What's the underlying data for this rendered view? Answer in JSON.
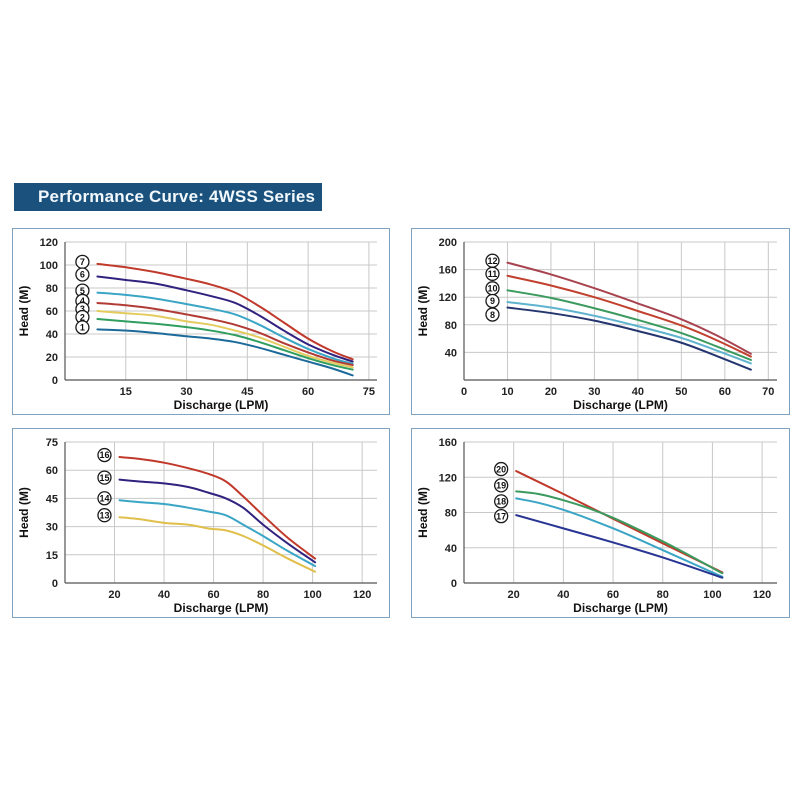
{
  "header": {
    "title": "Performance Curve: 4WSS Series"
  },
  "colors": {
    "banner_bg": "#1a527d",
    "banner_text": "#f2f8fc",
    "panel_border": "#7ea2bf",
    "grid": "#c8c8c8",
    "axis": "#555555",
    "tick_text": "#222222",
    "label_circle_stroke": "#1a1a1a"
  },
  "chart_data": [
    {
      "id": "top-left",
      "type": "line",
      "title": "",
      "xlabel": "Discharge (LPM)",
      "ylabel": "Head (M)",
      "xlim": [
        0,
        77
      ],
      "ylim": [
        0,
        120
      ],
      "xticks": [
        15,
        30,
        45,
        60,
        75
      ],
      "yticks": [
        0,
        20,
        40,
        60,
        80,
        100,
        120
      ],
      "grid": true,
      "legend": "circled numbers at curve start",
      "series": [
        {
          "name": "7",
          "color": "#c0392b",
          "x": [
            8,
            15,
            22,
            30,
            36,
            42,
            48,
            54,
            60,
            66,
            71
          ],
          "y": [
            101,
            98,
            94,
            88,
            83,
            76,
            64,
            50,
            36,
            25,
            18
          ]
        },
        {
          "name": "6",
          "color": "#31227f",
          "x": [
            8,
            15,
            22,
            30,
            36,
            42,
            48,
            54,
            60,
            66,
            71
          ],
          "y": [
            90,
            87,
            84,
            78,
            73,
            67,
            56,
            43,
            31,
            22,
            16
          ]
        },
        {
          "name": "5",
          "color": "#3aa5c5",
          "x": [
            8,
            15,
            22,
            30,
            36,
            42,
            48,
            54,
            60,
            66,
            71
          ],
          "y": [
            76,
            74,
            71,
            66,
            62,
            57,
            48,
            37,
            27,
            19,
            14
          ]
        },
        {
          "name": "4",
          "color": "#b23a34",
          "x": [
            8,
            15,
            22,
            30,
            36,
            42,
            48,
            54,
            60,
            66,
            71
          ],
          "y": [
            67,
            65,
            62,
            57,
            53,
            48,
            41,
            32,
            24,
            17,
            13
          ]
        },
        {
          "name": "3",
          "color": "#e4cb5e",
          "x": [
            8,
            15,
            22,
            30,
            36,
            42,
            48,
            54,
            60,
            66,
            71
          ],
          "y": [
            60,
            58,
            56,
            51,
            48,
            43,
            37,
            29,
            21,
            15,
            11
          ]
        },
        {
          "name": "2",
          "color": "#2f9e5e",
          "x": [
            8,
            15,
            22,
            30,
            36,
            42,
            48,
            54,
            60,
            66,
            71
          ],
          "y": [
            53,
            51,
            49,
            46,
            43,
            39,
            33,
            26,
            19,
            13,
            9
          ]
        },
        {
          "name": "1",
          "color": "#1c6a99",
          "x": [
            8,
            15,
            22,
            30,
            36,
            42,
            48,
            54,
            60,
            66,
            71
          ],
          "y": [
            44,
            43,
            41,
            38,
            36,
            33,
            28,
            22,
            16,
            10,
            4
          ]
        }
      ]
    },
    {
      "id": "top-right",
      "type": "line",
      "title": "",
      "xlabel": "Discharge (LPM)",
      "ylabel": "Head (M)",
      "xlim": [
        0,
        72
      ],
      "ylim": [
        0,
        200
      ],
      "xticks": [
        0,
        10,
        20,
        30,
        40,
        50,
        60,
        70
      ],
      "yticks": [
        40,
        80,
        120,
        160,
        200
      ],
      "grid": true,
      "legend": "circled numbers at curve start",
      "series": [
        {
          "name": "12",
          "color": "#a84350",
          "x": [
            10,
            20,
            30,
            40,
            50,
            58,
            66
          ],
          "y": [
            170,
            153,
            133,
            111,
            88,
            65,
            38
          ]
        },
        {
          "name": "11",
          "color": "#c2402e",
          "x": [
            10,
            20,
            30,
            40,
            50,
            58,
            66
          ],
          "y": [
            151,
            137,
            120,
            100,
            79,
            58,
            34
          ]
        },
        {
          "name": "10",
          "color": "#3b9a5e",
          "x": [
            10,
            20,
            30,
            40,
            50,
            58,
            66
          ],
          "y": [
            130,
            119,
            104,
            87,
            68,
            49,
            29
          ]
        },
        {
          "name": "9",
          "color": "#5fb3cf",
          "x": [
            10,
            20,
            30,
            40,
            50,
            58,
            66
          ],
          "y": [
            113,
            105,
            93,
            78,
            61,
            43,
            24
          ],
          "label_dy": 1
        },
        {
          "name": "8",
          "color": "#24356f",
          "x": [
            10,
            20,
            30,
            40,
            50,
            58,
            66
          ],
          "y": [
            105,
            97,
            86,
            71,
            54,
            35,
            15
          ],
          "label_dy": 9
        }
      ]
    },
    {
      "id": "bottom-left",
      "type": "line",
      "title": "",
      "xlabel": "Discharge (LPM)",
      "ylabel": "Head (M)",
      "xlim": [
        0,
        126
      ],
      "ylim": [
        0,
        75
      ],
      "xticks": [
        20,
        40,
        60,
        80,
        100,
        120
      ],
      "yticks": [
        0,
        15,
        30,
        45,
        60,
        75
      ],
      "grid": true,
      "legend": "circled numbers at curve start",
      "series": [
        {
          "name": "16",
          "color": "#c0392b",
          "x": [
            22,
            30,
            40,
            50,
            58,
            65,
            72,
            80,
            90,
            101
          ],
          "y": [
            67,
            66,
            64,
            61,
            58,
            54,
            46,
            36,
            24,
            13
          ]
        },
        {
          "name": "15",
          "color": "#31227f",
          "x": [
            22,
            30,
            40,
            50,
            58,
            65,
            72,
            80,
            90,
            101
          ],
          "y": [
            55,
            54,
            53,
            51,
            48,
            45,
            40,
            31,
            21,
            11
          ]
        },
        {
          "name": "14",
          "color": "#3aa5c5",
          "x": [
            22,
            30,
            40,
            50,
            58,
            65,
            72,
            80,
            90,
            101
          ],
          "y": [
            44,
            43,
            42,
            40,
            38,
            36,
            31,
            25,
            17,
            9
          ]
        },
        {
          "name": "13",
          "color": "#e0bf4a",
          "x": [
            22,
            30,
            40,
            50,
            58,
            65,
            72,
            80,
            90,
            101
          ],
          "y": [
            35,
            34,
            32,
            31,
            29,
            28,
            25,
            20,
            13,
            6
          ]
        }
      ]
    },
    {
      "id": "bottom-right",
      "type": "line",
      "title": "",
      "xlabel": "Discharge (LPM)",
      "ylabel": "Head (M)",
      "xlim": [
        0,
        126
      ],
      "ylim": [
        0,
        160
      ],
      "xticks": [
        20,
        40,
        60,
        80,
        100,
        120
      ],
      "yticks": [
        0,
        40,
        80,
        120,
        160
      ],
      "grid": true,
      "legend": "circled numbers at curve start",
      "series": [
        {
          "name": "20",
          "color": "#c0392b",
          "x": [
            21,
            40,
            60,
            80,
            104
          ],
          "y": [
            127,
            101,
            73,
            45,
            12
          ]
        },
        {
          "name": "19",
          "color": "#3b9a5e",
          "x": [
            21,
            30,
            40,
            50,
            60,
            70,
            85,
            104
          ],
          "y": [
            104,
            101,
            94,
            85,
            74,
            61,
            40,
            11
          ],
          "label_dy": -4
        },
        {
          "name": "18",
          "color": "#3aa5c5",
          "x": [
            21,
            30,
            40,
            50,
            60,
            70,
            85,
            104
          ],
          "y": [
            96,
            91,
            83,
            73,
            62,
            50,
            31,
            7
          ],
          "label_dy": 5
        },
        {
          "name": "17",
          "color": "#283593",
          "x": [
            21,
            40,
            60,
            80,
            104
          ],
          "y": [
            77,
            62,
            46,
            29,
            6
          ],
          "label_dy": 3
        }
      ]
    }
  ]
}
